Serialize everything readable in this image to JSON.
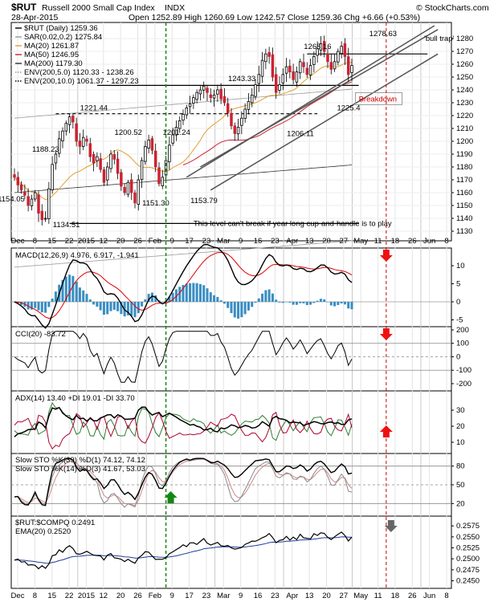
{
  "header": {
    "symbol": "$RUT",
    "name": "Russell 2000 Small Cap Index",
    "exchange": "INDX",
    "date": "28-Apr-2015",
    "ohlc": "Open 1252.89  High 1260.69  Low 1242.57  Close 1259.36  Chg +6.66 (+0.53%)",
    "copyright": "© StockCharts.com"
  },
  "colors": {
    "up_candle": "#ffffff",
    "down_candle": "#cc2233",
    "ma20": "#e0a030",
    "ma50": "#cc2233",
    "ma200": "#333333",
    "env200_5": "#999999",
    "macd_line": "#000000",
    "signal_line": "#dd0000",
    "histogram": "#3a8ec2",
    "plus_di": "#2e7d32",
    "minus_di": "#b00030",
    "adx": "#000000",
    "stoch_k": "#000000",
    "stoch_d": "#cc2233",
    "ratio_line": "#000000",
    "ratio_ema": "#1f3c99",
    "cci_fill": "#5a8a5a",
    "event_line": "#cc0000",
    "jan_line": "#118811"
  },
  "x_axis": {
    "labels": [
      "Dec",
      "8",
      "15",
      "22",
      "2015",
      "12",
      "20",
      "26",
      "Feb",
      "9",
      "17",
      "23",
      "Mar",
      "9",
      "16",
      "23",
      "Apr",
      "13",
      "20",
      "27",
      "May",
      "11",
      "18",
      "26",
      "Jun",
      "8"
    ]
  },
  "chart_data": [
    {
      "panel": "price",
      "type": "candlestick",
      "title": "$RUT (Daily) 1259.36",
      "ylim": [
        1125,
        1290
      ],
      "yticks": [
        1130,
        1140,
        1150,
        1160,
        1170,
        1180,
        1190,
        1200,
        1210,
        1220,
        1230,
        1240,
        1250,
        1260,
        1270,
        1280
      ],
      "legend": [
        {
          "label": "$RUT (Daily) 1259.36",
          "color": "#000000"
        },
        {
          "label": "SAR(0.02,0.2) 1275.84",
          "color": "#999999"
        },
        {
          "label": "MA(20) 1261.87",
          "color": "#e0a030"
        },
        {
          "label": "MA(50) 1246.95",
          "color": "#cc2233"
        },
        {
          "label": "MA(200) 1179.30",
          "color": "#333333"
        },
        {
          "label": "ENV(200,5.0) 1120.33 - 1238.26",
          "color": "#999999"
        },
        {
          "label": "ENV(200,10.0) 1061.37 - 1297.23",
          "color": "#000000"
        }
      ],
      "closes": [
        1172,
        1166,
        1162,
        1158,
        1150,
        1155,
        1160,
        1144,
        1139,
        1140,
        1163,
        1182,
        1190,
        1202,
        1208,
        1214,
        1219,
        1215,
        1200,
        1196,
        1203,
        1200,
        1188,
        1183,
        1188,
        1178,
        1168,
        1180,
        1190,
        1186,
        1175,
        1165,
        1160,
        1168,
        1160,
        1152,
        1170,
        1185,
        1196,
        1201,
        1193,
        1180,
        1167,
        1172,
        1185,
        1197,
        1205,
        1211,
        1216,
        1221,
        1226,
        1229,
        1234,
        1238,
        1240,
        1243,
        1238,
        1234,
        1236,
        1240,
        1233,
        1230,
        1222,
        1212,
        1206,
        1211,
        1218,
        1225,
        1231,
        1236,
        1244,
        1252,
        1263,
        1268,
        1266,
        1250,
        1238,
        1244,
        1252,
        1258,
        1254,
        1248,
        1254,
        1262,
        1258,
        1252,
        1259,
        1266,
        1272,
        1276,
        1270,
        1262,
        1256,
        1262,
        1270,
        1274,
        1266,
        1252,
        1259
      ],
      "labels": [
        {
          "text": "1154.05",
          "x": 0,
          "y": 1153
        },
        {
          "text": "1188.23",
          "x": 10,
          "y": 1192
        },
        {
          "text": "1134.51",
          "x": 16,
          "y": 1133
        },
        {
          "text": "1221.44",
          "x": 24,
          "y": 1224
        },
        {
          "text": "1200.52",
          "x": 34,
          "y": 1205
        },
        {
          "text": "1151.30",
          "x": 42,
          "y": 1150
        },
        {
          "text": "1201.24",
          "x": 48,
          "y": 1205
        },
        {
          "text": "1153.79",
          "x": 56,
          "y": 1152
        },
        {
          "text": "1243.33",
          "x": 67,
          "y": 1247
        },
        {
          "text": "1206.11",
          "x": 84,
          "y": 1204
        },
        {
          "text": "1268.16",
          "x": 89,
          "y": 1272
        },
        {
          "text": "1225.4",
          "x": 98,
          "y": 1224
        },
        {
          "text": "1278.63",
          "x": 108,
          "y": 1282
        }
      ],
      "annotations": [
        {
          "text": "'bull trap'",
          "color": "#000000",
          "x": 119,
          "y": 1278
        },
        {
          "text": "Breakdown",
          "color": "#cc0000",
          "x": 100,
          "y": 1231
        },
        {
          "text": "This level can't break if year long cup-and-handle is to play",
          "color": "#000000",
          "x": 52,
          "y": 1134
        }
      ]
    },
    {
      "panel": "macd",
      "type": "line",
      "label": "MACD(12,26,9) 4.976, 6.917, -1.941",
      "ylim": [
        -6,
        14
      ],
      "yticks": [
        -5,
        0,
        5,
        10
      ]
    },
    {
      "panel": "cci",
      "type": "line",
      "label": "CCI(20) -83.72",
      "ylim": [
        -230,
        200
      ],
      "yticks": [
        -200,
        -100,
        0,
        100,
        200
      ]
    },
    {
      "panel": "adx",
      "type": "line",
      "label": "ADX(14) 13.40  +DI 19.01  -DI 33.70",
      "ylim": [
        5,
        40
      ],
      "yticks": [
        10,
        20,
        30
      ]
    },
    {
      "panel": "stoch",
      "type": "line",
      "labels": [
        "Slow STO %K(39) %D(1) 74.12, 74.12",
        "Slow STO %K(14) %D(3) 41.67, 53.03"
      ],
      "ylim": [
        5,
        95
      ],
      "yticks": [
        20,
        50,
        80
      ]
    },
    {
      "panel": "ratio",
      "type": "line",
      "label": "$RUT:$COMPQ 0.2491",
      "ema_label": "EMA(20) 0.2520",
      "ylim": [
        0.244,
        0.259
      ],
      "yticks": [
        0.245,
        0.2475,
        0.25,
        0.2525,
        0.255,
        0.2575
      ]
    }
  ]
}
